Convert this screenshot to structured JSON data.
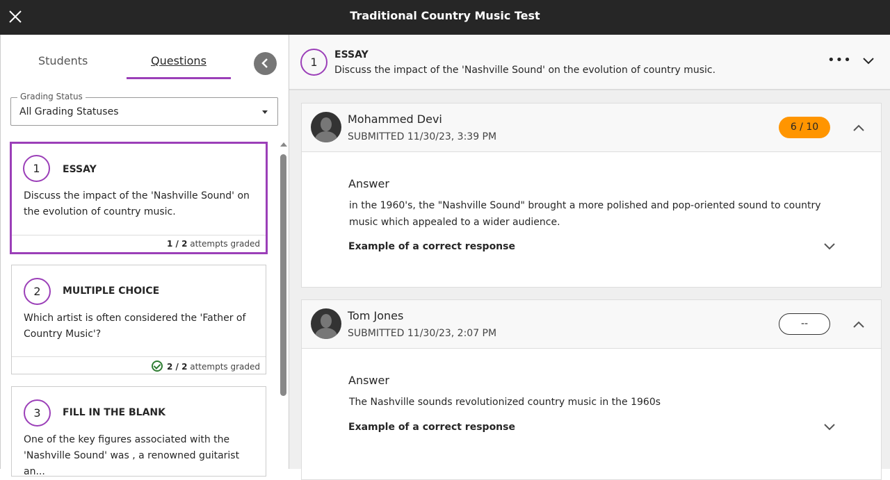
{
  "header": {
    "title": "Traditional Country Music Test"
  },
  "left": {
    "tabs": [
      {
        "label": "Students"
      },
      {
        "label": "Questions"
      }
    ],
    "filter": {
      "label": "Grading Status",
      "value": "All Grading Statuses"
    },
    "questions": [
      {
        "number": "1",
        "type": "ESSAY",
        "text": "Discuss the impact of the 'Nashville Sound' on the evolution of country music.",
        "graded": "1 / 2",
        "graded_suffix": "attempts graded",
        "complete": false
      },
      {
        "number": "2",
        "type": "MULTIPLE CHOICE",
        "text": "Which artist is often considered the 'Father of Country Music'?",
        "graded": "2 / 2",
        "graded_suffix": "attempts graded",
        "complete": true
      },
      {
        "number": "3",
        "type": "FILL IN THE BLANK",
        "text": "One of the key figures associated with the 'Nashville Sound' was , a renowned guitarist an..."
      }
    ]
  },
  "question": {
    "number": "1",
    "type": "ESSAY",
    "text": "Discuss the impact of the 'Nashville Sound' on the evolution of country music."
  },
  "submissions": [
    {
      "name": "Mohammed Devi",
      "submitted": "SUBMITTED 11/30/23, 3:39 PM",
      "grade": "6 / 10",
      "answer_label": "Answer",
      "answer": "in the 1960's, the \"Nashville Sound\" brought a more polished and pop-oriented sound to country music which appealed to a wider audience.",
      "example_label": "Example of a correct response"
    },
    {
      "name": "Tom Jones",
      "submitted": "SUBMITTED 11/30/23, 2:07 PM",
      "grade": "--",
      "answer_label": "Answer",
      "answer": "The Nashville sounds revolutionized country music in the 1960s",
      "example_label": "Example of a correct response"
    }
  ],
  "colors": {
    "accent": "#9b3fb8",
    "grade_badge": "#ff9500",
    "topbar": "#262626"
  }
}
